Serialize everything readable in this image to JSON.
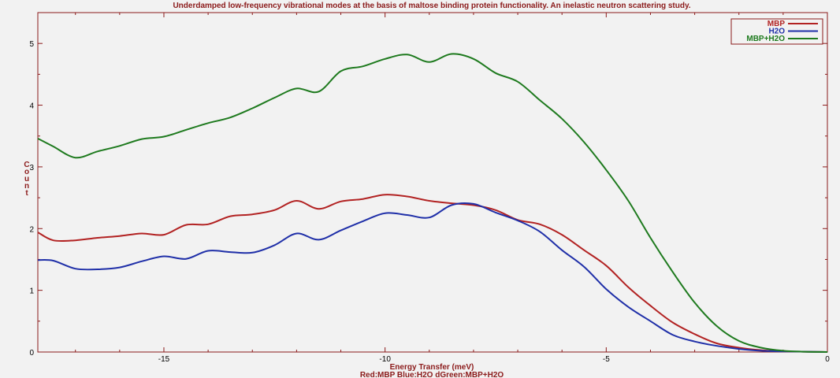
{
  "colors": {
    "frame": "#8b1a1a",
    "background": "#f2f2f2",
    "plot_background": "#f2f2f2"
  },
  "chart_data": {
    "type": "line",
    "title": "Underdamped low-frequency vibrational modes at the basis of maltose binding protein functionality. An inelastic neutron scattering study.",
    "xlabel": "Energy Transfer (meV)",
    "ylabel": "Count",
    "footer": "Red:MBP  Blue:H2O  dGreen:MBP+H2O",
    "xlim": [
      -17.85,
      0
    ],
    "ylim": [
      0,
      5.5
    ],
    "xticks": [
      -15,
      -10,
      -5,
      0
    ],
    "xtick_labels": [
      "-15",
      "-10",
      "-5",
      "0"
    ],
    "yticks": [
      0,
      1,
      2,
      3,
      4,
      5
    ],
    "ytick_labels": [
      "0",
      "1",
      "2",
      "3",
      "4",
      "5"
    ],
    "grid": false,
    "legend_position": "top-right",
    "series": [
      {
        "name": "MBP",
        "color": "#b22222",
        "x": [
          -17.85,
          -17.5,
          -17,
          -16.5,
          -16,
          -15.5,
          -15,
          -14.5,
          -14,
          -13.5,
          -13,
          -12.5,
          -12,
          -11.5,
          -11,
          -10.5,
          -10,
          -9.5,
          -9,
          -8.5,
          -8,
          -7.5,
          -7,
          -6.5,
          -6,
          -5.5,
          -5,
          -4.5,
          -4,
          -3.5,
          -3,
          -2.5,
          -2,
          -1.5,
          -1,
          -0.5,
          0
        ],
        "values": [
          1.94,
          1.81,
          1.81,
          1.85,
          1.88,
          1.92,
          1.9,
          2.06,
          2.07,
          2.2,
          2.23,
          2.3,
          2.45,
          2.32,
          2.44,
          2.48,
          2.55,
          2.52,
          2.45,
          2.41,
          2.38,
          2.3,
          2.14,
          2.07,
          1.9,
          1.65,
          1.4,
          1.05,
          0.75,
          0.48,
          0.29,
          0.14,
          0.07,
          0.03,
          0.01,
          0.005,
          0.0
        ]
      },
      {
        "name": "H2O",
        "color": "#1f2fa8",
        "x": [
          -17.85,
          -17.5,
          -17,
          -16.5,
          -16,
          -15.5,
          -15,
          -14.5,
          -14,
          -13.5,
          -13,
          -12.5,
          -12,
          -11.5,
          -11,
          -10.5,
          -10,
          -9.5,
          -9,
          -8.5,
          -8,
          -7.5,
          -7,
          -6.5,
          -6,
          -5.5,
          -5,
          -4.5,
          -4,
          -3.5,
          -3,
          -2.5,
          -2,
          -1.5,
          -1,
          -0.5,
          0
        ],
        "values": [
          1.49,
          1.48,
          1.35,
          1.34,
          1.37,
          1.47,
          1.55,
          1.51,
          1.64,
          1.62,
          1.61,
          1.73,
          1.92,
          1.82,
          1.97,
          2.12,
          2.25,
          2.22,
          2.18,
          2.38,
          2.4,
          2.26,
          2.13,
          1.95,
          1.65,
          1.38,
          1.02,
          0.73,
          0.5,
          0.28,
          0.17,
          0.1,
          0.05,
          0.02,
          0.01,
          0.005,
          0.0
        ]
      },
      {
        "name": "MBP+H2O",
        "color": "#1e7a1e",
        "x": [
          -17.85,
          -17.5,
          -17,
          -16.5,
          -16,
          -15.5,
          -15,
          -14.5,
          -14,
          -13.5,
          -13,
          -12.5,
          -12,
          -11.5,
          -11,
          -10.5,
          -10,
          -9.5,
          -9,
          -8.5,
          -8,
          -7.5,
          -7,
          -6.5,
          -6,
          -5.5,
          -5,
          -4.5,
          -4,
          -3.5,
          -3,
          -2.5,
          -2,
          -1.5,
          -1,
          -0.5,
          0
        ],
        "values": [
          3.46,
          3.33,
          3.15,
          3.25,
          3.34,
          3.45,
          3.49,
          3.6,
          3.71,
          3.8,
          3.95,
          4.12,
          4.27,
          4.22,
          4.55,
          4.63,
          4.75,
          4.82,
          4.7,
          4.83,
          4.75,
          4.52,
          4.38,
          4.08,
          3.78,
          3.4,
          2.95,
          2.45,
          1.85,
          1.3,
          0.8,
          0.42,
          0.18,
          0.07,
          0.02,
          0.005,
          0.0
        ]
      }
    ]
  }
}
